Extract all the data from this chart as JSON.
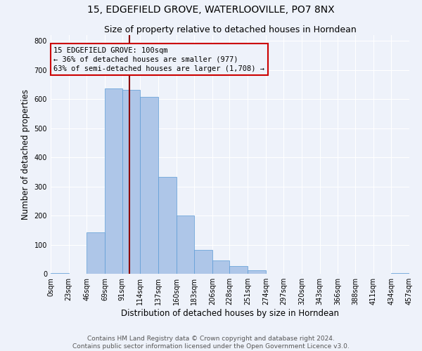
{
  "title": "15, EDGEFIELD GROVE, WATERLOOVILLE, PO7 8NX",
  "subtitle": "Size of property relative to detached houses in Horndean",
  "xlabel": "Distribution of detached houses by size in Horndean",
  "ylabel": "Number of detached properties",
  "bin_edges": [
    0,
    23,
    46,
    69,
    91,
    114,
    137,
    160,
    183,
    206,
    228,
    251,
    274,
    297,
    320,
    343,
    366,
    388,
    411,
    434,
    457
  ],
  "bin_labels": [
    "0sqm",
    "23sqm",
    "46sqm",
    "69sqm",
    "91sqm",
    "114sqm",
    "137sqm",
    "160sqm",
    "183sqm",
    "206sqm",
    "228sqm",
    "251sqm",
    "274sqm",
    "297sqm",
    "320sqm",
    "343sqm",
    "366sqm",
    "388sqm",
    "411sqm",
    "434sqm",
    "457sqm"
  ],
  "counts": [
    2,
    0,
    143,
    636,
    632,
    608,
    332,
    200,
    82,
    46,
    27,
    12,
    0,
    0,
    0,
    0,
    0,
    0,
    0,
    3
  ],
  "bar_color": "#aec6e8",
  "bar_edgecolor": "#5b9bd5",
  "property_line_x": 100,
  "property_line_color": "#8b0000",
  "annotation_text": "15 EDGEFIELD GROVE: 100sqm\n← 36% of detached houses are smaller (977)\n63% of semi-detached houses are larger (1,708) →",
  "annotation_box_edgecolor": "#cc0000",
  "ylim": [
    0,
    820
  ],
  "yticks": [
    0,
    100,
    200,
    300,
    400,
    500,
    600,
    700,
    800
  ],
  "footer_line1": "Contains HM Land Registry data © Crown copyright and database right 2024.",
  "footer_line2": "Contains public sector information licensed under the Open Government Licence v3.0.",
  "bg_color": "#eef2fa",
  "grid_color": "#ffffff",
  "title_fontsize": 10,
  "subtitle_fontsize": 9,
  "axis_label_fontsize": 8.5,
  "tick_fontsize": 7,
  "footer_fontsize": 6.5,
  "annotation_fontsize": 7.5
}
